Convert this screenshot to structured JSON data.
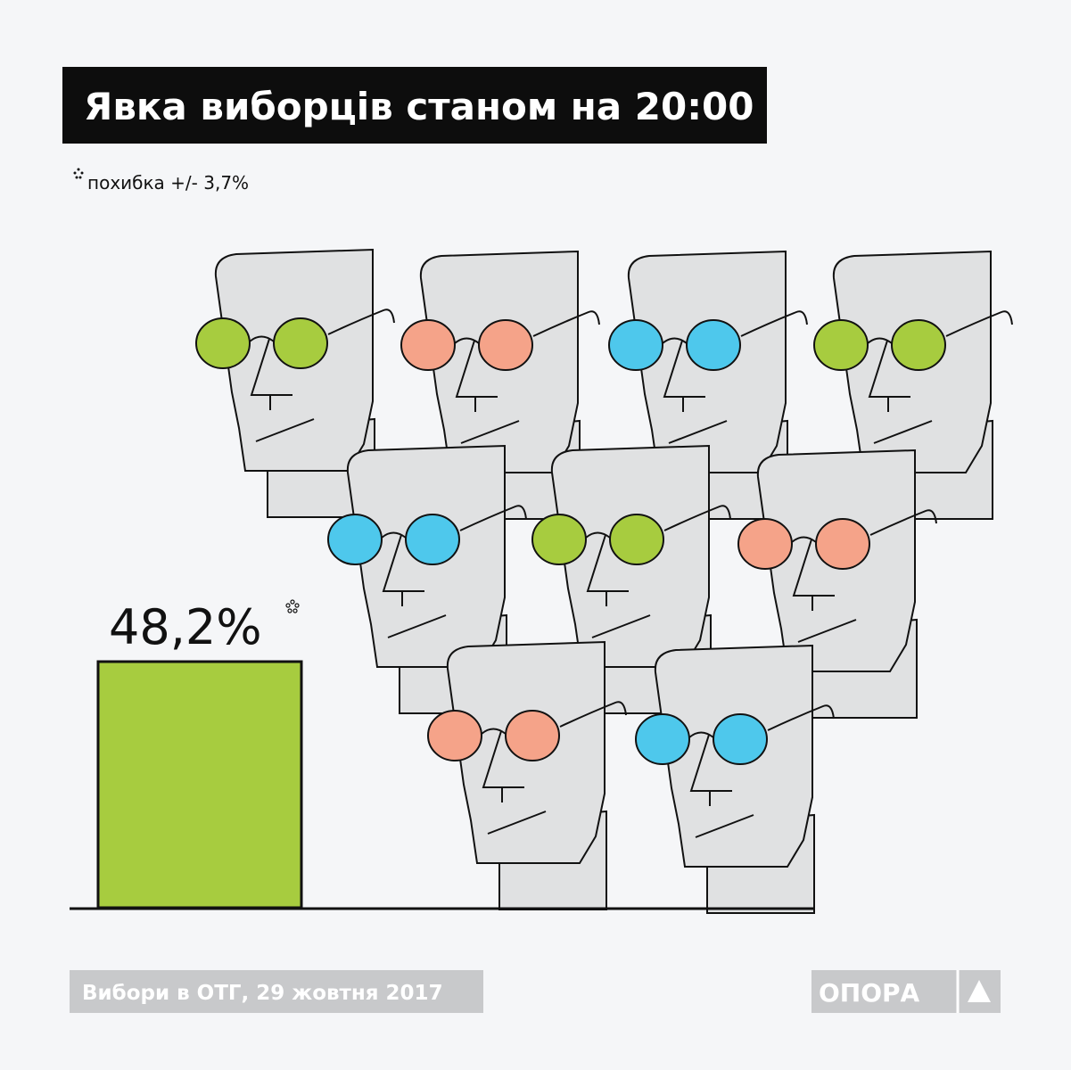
{
  "chart_data": {
    "type": "bar",
    "title": "Явка виборців станом на 20:00",
    "note": "похибка +/- 3,7%",
    "values": [
      48.2
    ],
    "value_labels": [
      "48,2%"
    ],
    "color": "#a7cc3f",
    "source": "Вибори в ОТГ, 29 жовтня 2017",
    "logo": "ОПОРА"
  }
}
